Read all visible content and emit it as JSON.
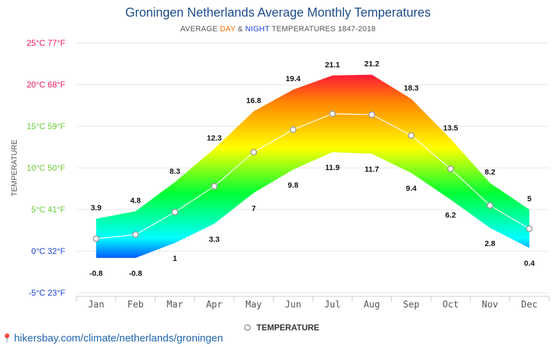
{
  "chart_data": {
    "type": "area",
    "title": "Groningen Netherlands Average Monthly Temperatures",
    "subtitle": {
      "prefix": "AVERAGE ",
      "day_word": "DAY",
      "middle": " & ",
      "night_word": "NIGHT",
      "suffix": " TEMPERATURES 1847-2018"
    },
    "ylabel": "TEMPERATURE",
    "ylim": [
      -5,
      25
    ],
    "y_ticks": [
      {
        "value": 25,
        "label": "25°C 77°F"
      },
      {
        "value": 20,
        "label": "20°C 68°F"
      },
      {
        "value": 15,
        "label": "15°C 59°F"
      },
      {
        "value": 10,
        "label": "10°C 50°F"
      },
      {
        "value": 5,
        "label": "5°C 41°F"
      },
      {
        "value": 0,
        "label": "0°C 32°F"
      },
      {
        "value": -5,
        "label": "-5°C 23°F"
      }
    ],
    "categories": [
      "Jan",
      "Feb",
      "Mar",
      "Apr",
      "May",
      "Jun",
      "Jul",
      "Aug",
      "Sep",
      "Oct",
      "Nov",
      "Dec"
    ],
    "series": [
      {
        "name": "DAY",
        "values": [
          3.9,
          4.8,
          8.3,
          12.3,
          16.8,
          19.4,
          21.1,
          21.2,
          18.3,
          13.5,
          8.2,
          5
        ],
        "labels": [
          "3.9",
          "4.8",
          "8.3",
          "12.3",
          "16.8",
          "19.4",
          "21.1",
          "21.2",
          "18.3",
          "13.5",
          "8.2",
          "5"
        ]
      },
      {
        "name": "NIGHT",
        "values": [
          -0.8,
          -0.8,
          1,
          3.3,
          7,
          9.8,
          11.9,
          11.7,
          9.4,
          6.2,
          2.8,
          0.4
        ],
        "labels": [
          "-0.8",
          "-0.8",
          "1",
          "3.3",
          "7",
          "9.8",
          "11.9",
          "11.7",
          "9.4",
          "6.2",
          "2.8",
          "0.4"
        ]
      },
      {
        "name": "TEMPERATURE",
        "values": [
          1.5,
          2.0,
          4.7,
          7.8,
          11.9,
          14.6,
          16.5,
          16.4,
          13.9,
          9.9,
          5.5,
          2.7
        ]
      }
    ],
    "legend": {
      "label": "TEMPERATURE",
      "position": "bottom-center"
    },
    "grid": true,
    "colors": {
      "band_stops": [
        "#0033ff",
        "#00ffff",
        "#00ff33",
        "#ffff00",
        "#ff8800",
        "#ff0044"
      ],
      "avg_line": "#ffffff",
      "avg_marker_stroke": "#999999",
      "tick_label_colors": [
        "#e8175d",
        "#e8175d",
        "#66cc33",
        "#66cc33",
        "#66cc33",
        "#1a3fd6",
        "#1a3fd6"
      ]
    }
  },
  "footer": {
    "url": "hikersbay.com/climate/netherlands/groningen",
    "pin_icon": "map-pin-icon"
  }
}
